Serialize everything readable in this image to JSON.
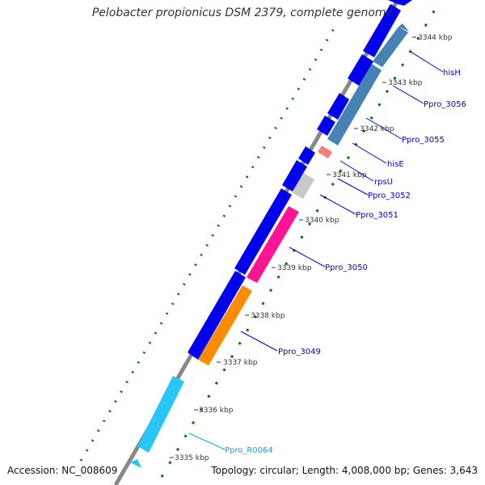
{
  "title": "Pelobacter propionicus DSM 2379, complete genome",
  "footer": {
    "accession": "Accession: NC_008609",
    "summary": "Topology: circular; Length: 4,008,000 bp; Genes: 3,643"
  },
  "ticks": [
    "3335 kbp",
    "3336 kbp",
    "3337 kbp",
    "3338 kbp",
    "3339 kbp",
    "3340 kbp",
    "3341 kbp",
    "3342 kbp",
    "3343 kbp",
    "3344 kbp"
  ],
  "gene_labels": [
    "Ppro_R0064",
    "Ppro_3049",
    "Ppro_3050",
    "Ppro_3051",
    "Ppro_3052",
    "rpsU",
    "hisE",
    "Ppro_3055",
    "Ppro_3056",
    "hisH"
  ],
  "colors": {
    "cds_forward": "#0000ee",
    "ppro_3049": "#ff8c00",
    "ppro_3050": "#ff1493",
    "ppro_3051": "#c8c8c8",
    "rpsU": "#f08080",
    "steelblue": "#4682b4",
    "rna": "#00bfff",
    "label_blue": "#0000cc",
    "label_cyan": "#00aadd",
    "dots": "#007700"
  }
}
